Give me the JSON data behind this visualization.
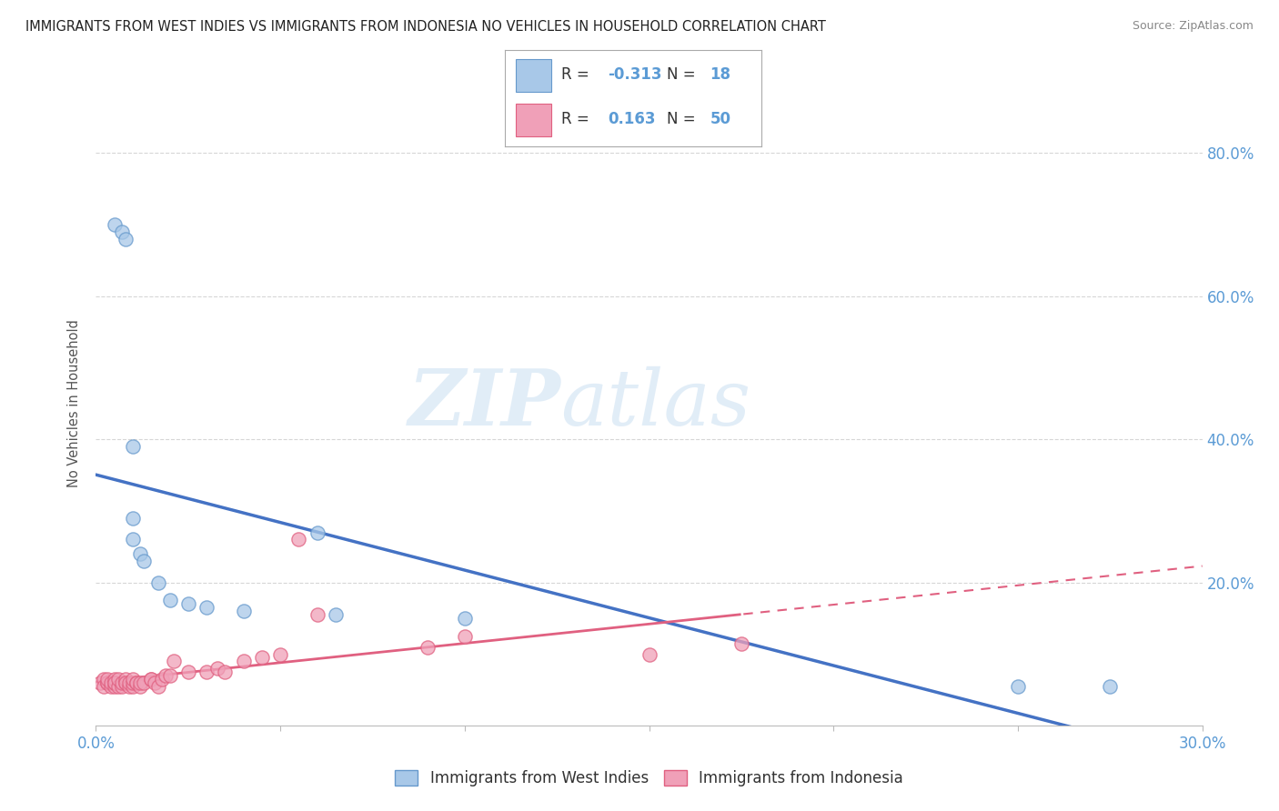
{
  "title": "IMMIGRANTS FROM WEST INDIES VS IMMIGRANTS FROM INDONESIA NO VEHICLES IN HOUSEHOLD CORRELATION CHART",
  "source": "Source: ZipAtlas.com",
  "ylabel": "No Vehicles in Household",
  "watermark_zip": "ZIP",
  "watermark_atlas": "atlas",
  "legend_box": {
    "R1": "-0.313",
    "N1": "18",
    "R2": "0.163",
    "N2": "50"
  },
  "west_indies": {
    "color": "#A8C8E8",
    "edge_color": "#6699CC",
    "x": [
      0.005,
      0.007,
      0.008,
      0.01,
      0.01,
      0.01,
      0.012,
      0.013,
      0.017,
      0.02,
      0.025,
      0.03,
      0.04,
      0.06,
      0.065,
      0.1,
      0.25,
      0.275
    ],
    "y": [
      0.7,
      0.69,
      0.68,
      0.39,
      0.29,
      0.26,
      0.24,
      0.23,
      0.2,
      0.175,
      0.17,
      0.165,
      0.16,
      0.27,
      0.155,
      0.15,
      0.055,
      0.055
    ]
  },
  "indonesia": {
    "color": "#F0A0B8",
    "edge_color": "#E06080",
    "x": [
      0.001,
      0.002,
      0.002,
      0.003,
      0.003,
      0.003,
      0.004,
      0.004,
      0.005,
      0.005,
      0.005,
      0.005,
      0.006,
      0.006,
      0.007,
      0.007,
      0.008,
      0.008,
      0.008,
      0.009,
      0.009,
      0.01,
      0.01,
      0.01,
      0.011,
      0.011,
      0.012,
      0.012,
      0.013,
      0.015,
      0.015,
      0.016,
      0.017,
      0.018,
      0.019,
      0.02,
      0.021,
      0.025,
      0.03,
      0.033,
      0.035,
      0.04,
      0.045,
      0.05,
      0.055,
      0.06,
      0.09,
      0.1,
      0.15,
      0.175
    ],
    "y": [
      0.06,
      0.065,
      0.055,
      0.06,
      0.06,
      0.065,
      0.055,
      0.06,
      0.055,
      0.06,
      0.065,
      0.06,
      0.055,
      0.065,
      0.055,
      0.06,
      0.06,
      0.065,
      0.06,
      0.055,
      0.06,
      0.055,
      0.06,
      0.065,
      0.06,
      0.06,
      0.055,
      0.06,
      0.06,
      0.065,
      0.065,
      0.06,
      0.055,
      0.065,
      0.07,
      0.07,
      0.09,
      0.075,
      0.075,
      0.08,
      0.075,
      0.09,
      0.095,
      0.1,
      0.26,
      0.155,
      0.11,
      0.125,
      0.1,
      0.115
    ]
  },
  "bg_color": "#FFFFFF",
  "grid_color": "#CCCCCC",
  "axis_color": "#BBBBBB",
  "text_color_blue": "#5B9BD5",
  "xlim": [
    0.0,
    0.3
  ],
  "ylim": [
    0.0,
    0.9
  ],
  "yticks": [
    0.2,
    0.4,
    0.6,
    0.8
  ],
  "ytick_labels": [
    "20.0%",
    "40.0%",
    "60.0%",
    "80.0%"
  ],
  "xtick_labels_show": [
    "0.0%",
    "30.0%"
  ],
  "wi_trend": {
    "slope": -0.95,
    "intercept": 0.3
  },
  "id_trend": {
    "slope": 0.25,
    "intercept": 0.055
  }
}
